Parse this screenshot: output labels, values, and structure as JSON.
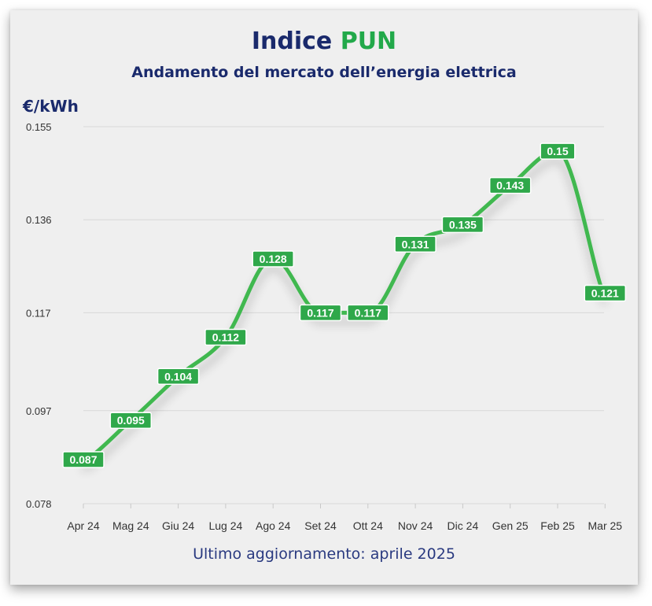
{
  "header": {
    "title_main": "Indice",
    "title_accent": "PUN",
    "subtitle": "Andamento del mercato dell’energia elettrica",
    "unit": "€/kWh"
  },
  "footer": {
    "updated": "Ultimo aggiornamento: aprile 2025"
  },
  "colors": {
    "line": "#3fb84f",
    "label_bg": "#2fa84a",
    "title": "#1a2a6c",
    "accent": "#22a94a",
    "grid": "#d8d8d8"
  },
  "chart_data": {
    "type": "line",
    "title": "Indice PUN",
    "subtitle": "Andamento del mercato dell’energia elettrica",
    "ylabel": "€/kWh",
    "xlabel": "",
    "categories": [
      "Apr 24",
      "Mag 24",
      "Giu 24",
      "Lug 24",
      "Ago 24",
      "Set 24",
      "Ott 24",
      "Nov 24",
      "Dic 24",
      "Gen 25",
      "Feb 25",
      "Mar 25"
    ],
    "values": [
      0.087,
      0.095,
      0.104,
      0.112,
      0.128,
      0.117,
      0.117,
      0.131,
      0.135,
      0.143,
      0.15,
      0.121
    ],
    "value_labels": [
      "0.087",
      "0.095",
      "0.104",
      "0.112",
      "0.128",
      "0.117",
      "0.117",
      "0.131",
      "0.135",
      "0.143",
      "0.15",
      "0.121"
    ],
    "yticks": [
      "0.078",
      "0.097",
      "0.117",
      "0.136",
      "0.155"
    ],
    "ylim": [
      0.078,
      0.155
    ],
    "grid": true
  }
}
